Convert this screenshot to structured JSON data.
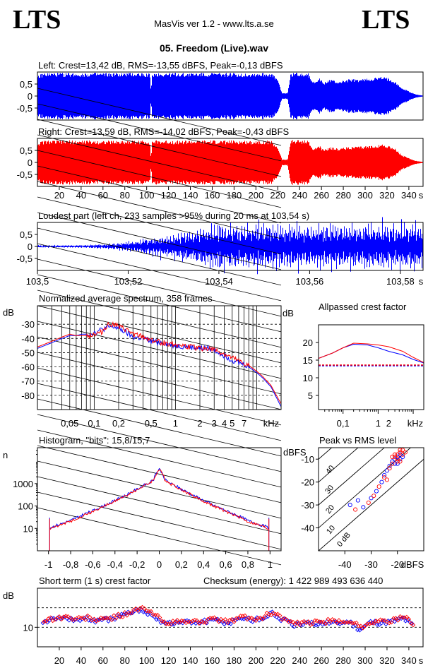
{
  "header": {
    "logo_left": "LTS",
    "logo_right": "LTS",
    "app_title": "MasVis ver 1.2 - www.lts.a.se",
    "file_title": "05. Freedom (Live).wav"
  },
  "colors": {
    "left": "#0000ff",
    "right": "#ff0000",
    "grid": "#000000"
  },
  "chart_data": [
    {
      "id": "left",
      "type": "area",
      "title": "Left: Crest=13,42 dB, RMS=-13,55 dBFS, Peak=-0,13 dBFS",
      "ylim": [
        -1,
        1
      ],
      "yticks": [
        "0,5",
        "0",
        "-0,5"
      ],
      "xlim": [
        0,
        353
      ],
      "envelope_t": [
        0,
        6,
        12,
        25,
        40,
        55,
        70,
        85,
        100,
        103,
        104,
        105,
        106,
        107,
        110,
        115,
        130,
        150,
        170,
        190,
        205,
        214,
        220,
        224,
        226,
        229,
        232,
        236,
        240,
        244,
        248,
        252,
        258,
        262,
        268,
        275,
        285,
        295,
        305,
        315,
        322,
        328,
        333,
        338,
        342,
        346,
        350,
        353
      ],
      "envelope_a": [
        0.85,
        0.97,
        0.97,
        0.97,
        0.97,
        0.97,
        0.96,
        0.97,
        0.97,
        0.95,
        0.12,
        0.95,
        0.96,
        0.97,
        0.97,
        0.97,
        0.97,
        0.97,
        0.97,
        0.96,
        0.97,
        0.96,
        0.7,
        0.12,
        0.12,
        0.12,
        0.98,
        0.98,
        0.98,
        0.98,
        0.98,
        0.6,
        0.75,
        0.55,
        0.7,
        0.6,
        0.7,
        0.7,
        0.75,
        0.8,
        0.75,
        0.6,
        0.35,
        0.25,
        0.15,
        0.08,
        0.04,
        0.02
      ]
    },
    {
      "id": "right",
      "type": "area",
      "title": "Right: Crest=13,59 dB, RMS=-14,02 dBFS, Peak=-0,43 dBFS",
      "ylim": [
        -1,
        1
      ],
      "yticks": [
        "0,5",
        "0",
        "-0,5"
      ],
      "xlim": [
        0,
        353
      ],
      "xticks": [
        "20",
        "40",
        "60",
        "80",
        "100",
        "120",
        "140",
        "160",
        "180",
        "200",
        "220",
        "240",
        "260",
        "280",
        "300",
        "320",
        "340",
        "s"
      ],
      "envelope_t": [
        0,
        6,
        12,
        25,
        40,
        55,
        70,
        85,
        100,
        103,
        104,
        105,
        106,
        107,
        110,
        115,
        130,
        150,
        170,
        190,
        205,
        214,
        220,
        224,
        226,
        229,
        232,
        236,
        240,
        244,
        248,
        252,
        258,
        262,
        268,
        275,
        285,
        295,
        305,
        315,
        322,
        328,
        333,
        338,
        342,
        346,
        350,
        353
      ],
      "envelope_a": [
        0.82,
        0.92,
        0.92,
        0.92,
        0.92,
        0.92,
        0.91,
        0.92,
        0.92,
        0.9,
        0.12,
        0.9,
        0.91,
        0.92,
        0.92,
        0.92,
        0.92,
        0.92,
        0.92,
        0.91,
        0.92,
        0.91,
        0.65,
        0.12,
        0.12,
        0.12,
        0.94,
        0.94,
        0.94,
        0.94,
        0.94,
        0.55,
        0.72,
        0.52,
        0.66,
        0.58,
        0.66,
        0.66,
        0.7,
        0.76,
        0.7,
        0.56,
        0.32,
        0.22,
        0.14,
        0.07,
        0.04,
        0.02
      ]
    },
    {
      "id": "loudest",
      "type": "line",
      "title": "Loudest part (left  ch, 233 samples >95% during 20 ms at 103,54 s)",
      "ylim": [
        -1,
        1
      ],
      "yticks": [
        "0,5",
        "0",
        "-0,5"
      ],
      "xlim": [
        103.5,
        103.585
      ],
      "xticks": [
        "103,5",
        "103,52",
        "103,54",
        "103,56",
        "103,58",
        "s"
      ],
      "envelope_t": [
        103.5,
        103.51,
        103.515,
        103.52,
        103.525,
        103.53,
        103.535,
        103.54,
        103.55,
        103.56,
        103.57,
        103.58,
        103.585
      ],
      "envelope_a": [
        0.05,
        0.06,
        0.1,
        0.2,
        0.4,
        0.55,
        0.75,
        1.0,
        1.0,
        0.95,
        1.0,
        1.0,
        1.0
      ]
    },
    {
      "id": "spectrum",
      "type": "line",
      "title": "Normalized average spectrum, 358 frames",
      "ylabel": "dB",
      "xlabel": "kHz",
      "ylim": [
        -90,
        -17
      ],
      "yticks": [
        -30,
        -40,
        -50,
        -60,
        -70,
        -80
      ],
      "xlim": [
        0.02,
        20
      ],
      "xticks": [
        "0,05",
        "0,1",
        "0,2",
        "0,5",
        "1",
        "2",
        "3",
        "4",
        "5",
        "7",
        "kHz"
      ],
      "xtick_values": [
        0.05,
        0.1,
        0.2,
        0.5,
        1,
        2,
        3,
        4,
        5,
        7
      ],
      "freq": [
        0.02,
        0.03,
        0.04,
        0.05,
        0.06,
        0.07,
        0.08,
        0.1,
        0.12,
        0.15,
        0.18,
        0.2,
        0.25,
        0.3,
        0.4,
        0.5,
        0.7,
        1,
        1.5,
        2,
        2.5,
        3,
        4,
        5,
        6,
        7,
        8,
        10,
        12,
        15,
        20
      ],
      "series": [
        {
          "name": "",
          "values": [
            -47,
            -43,
            -40,
            -38,
            -38,
            -37,
            -37,
            -36,
            -34,
            -32,
            -32,
            -33,
            -36,
            -39,
            -40,
            -42,
            -43,
            -45,
            -46,
            -47,
            -47,
            -48,
            -52,
            -55,
            -57,
            -58,
            -60,
            -64,
            -68,
            -74,
            -88
          ]
        },
        {
          "name": "",
          "values": [
            -46,
            -42,
            -39,
            -37,
            -38,
            -38,
            -38,
            -37,
            -36,
            -30,
            -30,
            -32,
            -34,
            -37,
            -39,
            -41,
            -43,
            -44,
            -46,
            -47,
            -47,
            -48,
            -51,
            -54,
            -56,
            -58,
            -59,
            -63,
            -67,
            -73,
            -86
          ]
        }
      ]
    },
    {
      "id": "allpass",
      "type": "line",
      "title": "Allpassed crest factor",
      "ylabel": "dB",
      "xlabel": "kHz",
      "ylim": [
        1,
        25
      ],
      "yticks": [
        20,
        15,
        10,
        5
      ],
      "xlim": [
        0.02,
        20
      ],
      "xticks": [
        "0,1",
        "1",
        "2",
        "kHz"
      ],
      "xtick_values": [
        0.1,
        1,
        2
      ],
      "freq": [
        0.02,
        0.05,
        0.1,
        0.2,
        0.5,
        1,
        2,
        5,
        10,
        20
      ],
      "series": [
        {
          "name": "",
          "values": [
            15.5,
            17,
            18.5,
            19.5,
            19.3,
            18.5,
            17.5,
            16.5,
            15.2,
            14.2
          ]
        },
        {
          "name": "",
          "values": [
            15.5,
            17,
            18.5,
            19.8,
            19.6,
            19.3,
            18.8,
            17.5,
            15.8,
            14.3
          ]
        }
      ],
      "reference": [
        13.4,
        13.6
      ]
    },
    {
      "id": "histogram",
      "type": "line",
      "title": "Histogram, \"bits\": 15,8/15,7",
      "ylabel": "n",
      "ylim_log": [
        1,
        40000
      ],
      "yticks": [
        "1000",
        "100",
        "10"
      ],
      "ytick_values": [
        1000,
        100,
        10
      ],
      "xlim": [
        -1.1,
        1.1
      ],
      "xticks": [
        "-1",
        "-0,8",
        "-0,6",
        "-0,4",
        "-0,2",
        "0",
        "0,2",
        "0,4",
        "0,6",
        "0,8",
        "1"
      ],
      "xtick_values": [
        -1,
        -0.8,
        -0.6,
        -0.4,
        -0.2,
        0,
        0.2,
        0.4,
        0.6,
        0.8,
        1
      ],
      "x": [
        -0.99,
        -0.96,
        -0.9,
        -0.8,
        -0.7,
        -0.6,
        -0.5,
        -0.4,
        -0.3,
        -0.2,
        -0.1,
        -0.05,
        0,
        0.05,
        0.1,
        0.2,
        0.3,
        0.4,
        0.5,
        0.6,
        0.7,
        0.8,
        0.9,
        0.96,
        0.99
      ],
      "series": [
        {
          "name": "",
          "values": [
            10,
            12,
            15,
            22,
            38,
            60,
            100,
            170,
            300,
            550,
            1000,
            1500,
            4500,
            1500,
            1000,
            550,
            300,
            170,
            100,
            60,
            38,
            22,
            15,
            12,
            10
          ]
        },
        {
          "name": "",
          "values": [
            9,
            11,
            14,
            20,
            35,
            55,
            95,
            160,
            280,
            520,
            980,
            1450,
            4200,
            1450,
            980,
            520,
            280,
            160,
            95,
            55,
            35,
            20,
            14,
            11,
            9
          ]
        }
      ]
    },
    {
      "id": "peakrms",
      "type": "scatter",
      "title": "Peak vs RMS level",
      "ylabel": "dBFS",
      "xlabel": "dBFS",
      "xlim": [
        -50,
        -10
      ],
      "ylim": [
        -50,
        -5
      ],
      "xticks": [
        "-40",
        "-30",
        "-20",
        "dBFS"
      ],
      "xtick_values": [
        -40,
        -30,
        -20
      ],
      "yticks": [
        "-10",
        "-20",
        "-30",
        "-40"
      ],
      "ytick_values": [
        -10,
        -20,
        -30,
        -40
      ],
      "diagonal_labels": [
        "40",
        "30",
        "20",
        "10",
        "0 dB"
      ],
      "left_points": [
        [
          -22,
          -11
        ],
        [
          -21,
          -10
        ],
        [
          -20,
          -9
        ],
        [
          -19,
          -8
        ],
        [
          -23,
          -13
        ],
        [
          -24,
          -15
        ],
        [
          -25,
          -17
        ],
        [
          -28,
          -24
        ],
        [
          -30,
          -27
        ],
        [
          -33,
          -31
        ],
        [
          -35,
          -28
        ],
        [
          -38,
          -30
        ],
        [
          -20,
          -12
        ],
        [
          -19,
          -10
        ],
        [
          -18,
          -9
        ],
        [
          -21,
          -12
        ],
        [
          -26,
          -20
        ]
      ],
      "right_points": [
        [
          -21,
          -9
        ],
        [
          -20,
          -8
        ],
        [
          -19,
          -7
        ],
        [
          -18,
          -6
        ],
        [
          -20,
          -11
        ],
        [
          -22,
          -12
        ],
        [
          -23,
          -14
        ],
        [
          -25,
          -18
        ],
        [
          -27,
          -22
        ],
        [
          -29,
          -26
        ],
        [
          -31,
          -29
        ],
        [
          -36,
          -32
        ],
        [
          -19,
          -11
        ],
        [
          -18,
          -8
        ],
        [
          -17,
          -7
        ],
        [
          -20,
          -10
        ],
        [
          -24,
          -19
        ],
        [
          -21,
          -8
        ],
        [
          -22,
          -9
        ],
        [
          -19,
          -6
        ]
      ]
    },
    {
      "id": "crest",
      "type": "scatter",
      "title": "Short term (1 s) crest factor",
      "checksum": "Checksum (energy):  1 422 989 493 636 440",
      "ylabel": "dB",
      "ylim": [
        5,
        20
      ],
      "yticks": [
        "10"
      ],
      "ytick_values": [
        10
      ],
      "dashed_levels": [
        10,
        15
      ],
      "xlim": [
        0,
        353
      ],
      "xticks": [
        "20",
        "40",
        "60",
        "80",
        "100",
        "120",
        "140",
        "160",
        "180",
        "200",
        "220",
        "240",
        "260",
        "280",
        "300",
        "320",
        "340",
        "s"
      ],
      "left_t": [
        5,
        15,
        25,
        35,
        45,
        55,
        65,
        75,
        85,
        95,
        105,
        115,
        125,
        135,
        145,
        155,
        165,
        175,
        185,
        195,
        205,
        215,
        225,
        235,
        245,
        255,
        265,
        275,
        285,
        295,
        305,
        315,
        325,
        335,
        345
      ],
      "left_v": [
        11.5,
        12,
        12.5,
        11.8,
        12.2,
        11.5,
        12,
        12.8,
        13.5,
        14.5,
        13.2,
        11.2,
        11,
        11.3,
        11.2,
        11.5,
        11.8,
        11,
        12.5,
        11.8,
        12.2,
        13.5,
        11.8,
        10.5,
        10.8,
        11,
        11.2,
        11,
        11.5,
        9.5,
        11.3,
        11.2,
        11.5,
        12.3,
        10.2
      ],
      "right_t": [
        6,
        16,
        26,
        36,
        46,
        56,
        66,
        76,
        86,
        96,
        106,
        116,
        126,
        136,
        146,
        156,
        166,
        176,
        186,
        196,
        206,
        216,
        226,
        236,
        246,
        256,
        266,
        276,
        286,
        296,
        306,
        316,
        326,
        336,
        346
      ],
      "right_v": [
        11.8,
        12.3,
        12.7,
        12,
        12.5,
        11.8,
        12.3,
        13,
        14,
        14.8,
        13.5,
        11.4,
        11.2,
        11.5,
        11.4,
        11.8,
        12,
        11.3,
        12.8,
        12,
        12.5,
        14,
        12,
        10.8,
        11,
        11.3,
        11.5,
        11.3,
        11.8,
        10,
        11.5,
        11.5,
        11.8,
        12.5,
        10.5
      ]
    }
  ]
}
